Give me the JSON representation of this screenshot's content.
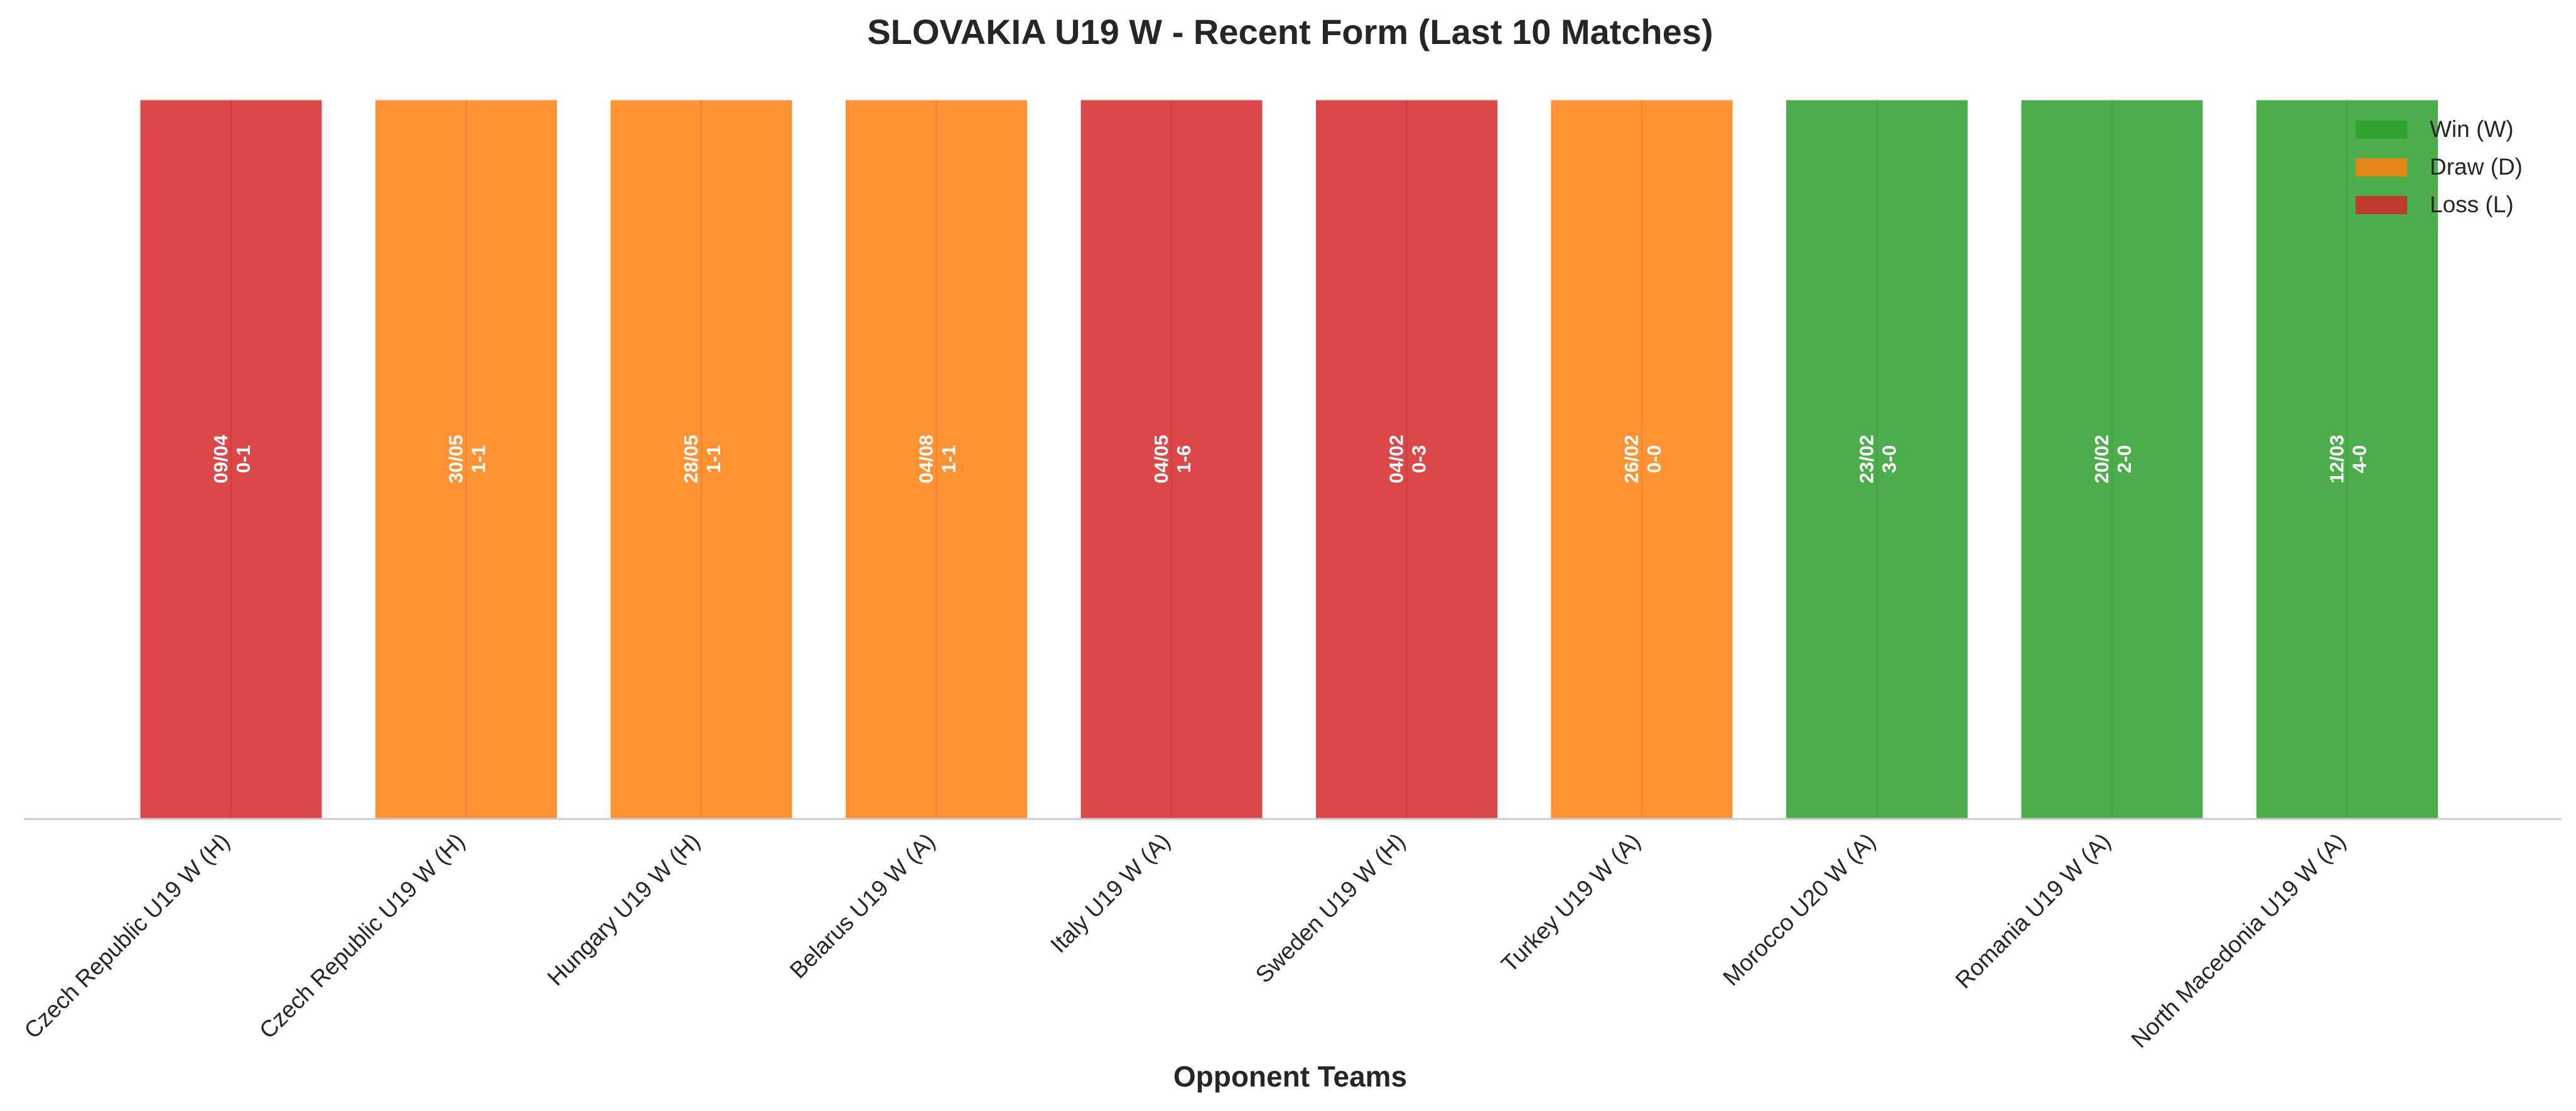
{
  "chart_data": {
    "type": "bar",
    "title": "SLOVAKIA U19 W - Recent Form (Last 10 Matches)",
    "xlabel": "Opponent Teams",
    "ylabel": "",
    "ylim": [
      0,
      1
    ],
    "grid": false,
    "legend_position": "top-right",
    "legend": [
      {
        "label": "Win (W)",
        "result": "W"
      },
      {
        "label": "Draw (D)",
        "result": "D"
      },
      {
        "label": "Loss (L)",
        "result": "L"
      }
    ],
    "colors": {
      "W": "#2ca02c",
      "D": "#ff7f0e",
      "L": "#d62728"
    },
    "categories": [
      "Czech Republic U19 W (H)",
      "Czech Republic U19 W (H)",
      "Hungary U19 W (H)",
      "Belarus U19 W (A)",
      "Italy U19 W (A)",
      "Sweden U19 W (H)",
      "Turkey U19 W (A)",
      "Morocco U20 W (A)",
      "Romania U19 W (A)",
      "North Macedonia U19 W (A)"
    ],
    "values": [
      1,
      1,
      1,
      1,
      1,
      1,
      1,
      1,
      1,
      1
    ],
    "results": [
      "L",
      "D",
      "D",
      "D",
      "L",
      "L",
      "D",
      "W",
      "W",
      "W"
    ],
    "dates": [
      "09/04",
      "30/05",
      "28/05",
      "04/08",
      "04/05",
      "04/02",
      "26/02",
      "23/02",
      "20/02",
      "12/03"
    ],
    "scores": [
      "0-1",
      "1-1",
      "1-1",
      "1-1",
      "1-6",
      "0-3",
      "0-0",
      "3-0",
      "2-0",
      "4-0"
    ]
  }
}
